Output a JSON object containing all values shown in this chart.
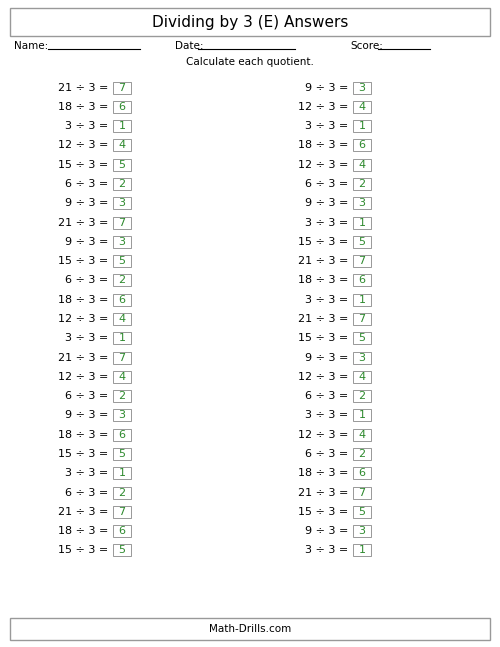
{
  "title": "Dividing by 3 (E) Answers",
  "subtitle": "Calculate each quotient.",
  "footer": "Math-Drills.com",
  "name_label": "Name:",
  "date_label": "Date:",
  "score_label": "Score:",
  "left_column": [
    {
      "problem": "21 ÷ 3 =",
      "answer": "7"
    },
    {
      "problem": "18 ÷ 3 =",
      "answer": "6"
    },
    {
      "problem": "3 ÷ 3 =",
      "answer": "1"
    },
    {
      "problem": "12 ÷ 3 =",
      "answer": "4"
    },
    {
      "problem": "15 ÷ 3 =",
      "answer": "5"
    },
    {
      "problem": "6 ÷ 3 =",
      "answer": "2"
    },
    {
      "problem": "9 ÷ 3 =",
      "answer": "3"
    },
    {
      "problem": "21 ÷ 3 =",
      "answer": "7"
    },
    {
      "problem": "9 ÷ 3 =",
      "answer": "3"
    },
    {
      "problem": "15 ÷ 3 =",
      "answer": "5"
    },
    {
      "problem": "6 ÷ 3 =",
      "answer": "2"
    },
    {
      "problem": "18 ÷ 3 =",
      "answer": "6"
    },
    {
      "problem": "12 ÷ 3 =",
      "answer": "4"
    },
    {
      "problem": "3 ÷ 3 =",
      "answer": "1"
    },
    {
      "problem": "21 ÷ 3 =",
      "answer": "7"
    },
    {
      "problem": "12 ÷ 3 =",
      "answer": "4"
    },
    {
      "problem": "6 ÷ 3 =",
      "answer": "2"
    },
    {
      "problem": "9 ÷ 3 =",
      "answer": "3"
    },
    {
      "problem": "18 ÷ 3 =",
      "answer": "6"
    },
    {
      "problem": "15 ÷ 3 =",
      "answer": "5"
    },
    {
      "problem": "3 ÷ 3 =",
      "answer": "1"
    },
    {
      "problem": "6 ÷ 3 =",
      "answer": "2"
    },
    {
      "problem": "21 ÷ 3 =",
      "answer": "7"
    },
    {
      "problem": "18 ÷ 3 =",
      "answer": "6"
    },
    {
      "problem": "15 ÷ 3 =",
      "answer": "5"
    }
  ],
  "right_column": [
    {
      "problem": "9 ÷ 3 =",
      "answer": "3"
    },
    {
      "problem": "12 ÷ 3 =",
      "answer": "4"
    },
    {
      "problem": "3 ÷ 3 =",
      "answer": "1"
    },
    {
      "problem": "18 ÷ 3 =",
      "answer": "6"
    },
    {
      "problem": "12 ÷ 3 =",
      "answer": "4"
    },
    {
      "problem": "6 ÷ 3 =",
      "answer": "2"
    },
    {
      "problem": "9 ÷ 3 =",
      "answer": "3"
    },
    {
      "problem": "3 ÷ 3 =",
      "answer": "1"
    },
    {
      "problem": "15 ÷ 3 =",
      "answer": "5"
    },
    {
      "problem": "21 ÷ 3 =",
      "answer": "7"
    },
    {
      "problem": "18 ÷ 3 =",
      "answer": "6"
    },
    {
      "problem": "3 ÷ 3 =",
      "answer": "1"
    },
    {
      "problem": "21 ÷ 3 =",
      "answer": "7"
    },
    {
      "problem": "15 ÷ 3 =",
      "answer": "5"
    },
    {
      "problem": "9 ÷ 3 =",
      "answer": "3"
    },
    {
      "problem": "12 ÷ 3 =",
      "answer": "4"
    },
    {
      "problem": "6 ÷ 3 =",
      "answer": "2"
    },
    {
      "problem": "3 ÷ 3 =",
      "answer": "1"
    },
    {
      "problem": "12 ÷ 3 =",
      "answer": "4"
    },
    {
      "problem": "6 ÷ 3 =",
      "answer": "2"
    },
    {
      "problem": "18 ÷ 3 =",
      "answer": "6"
    },
    {
      "problem": "21 ÷ 3 =",
      "answer": "7"
    },
    {
      "problem": "15 ÷ 3 =",
      "answer": "5"
    },
    {
      "problem": "9 ÷ 3 =",
      "answer": "3"
    },
    {
      "problem": "3 ÷ 3 =",
      "answer": "1"
    }
  ],
  "bg_color": "#ffffff",
  "text_color": "#000000",
  "answer_color": "#2d8a2d",
  "box_edge_color": "#888888",
  "title_fontsize": 11,
  "label_fontsize": 7.5,
  "problem_fontsize": 8,
  "answer_fontsize": 8
}
